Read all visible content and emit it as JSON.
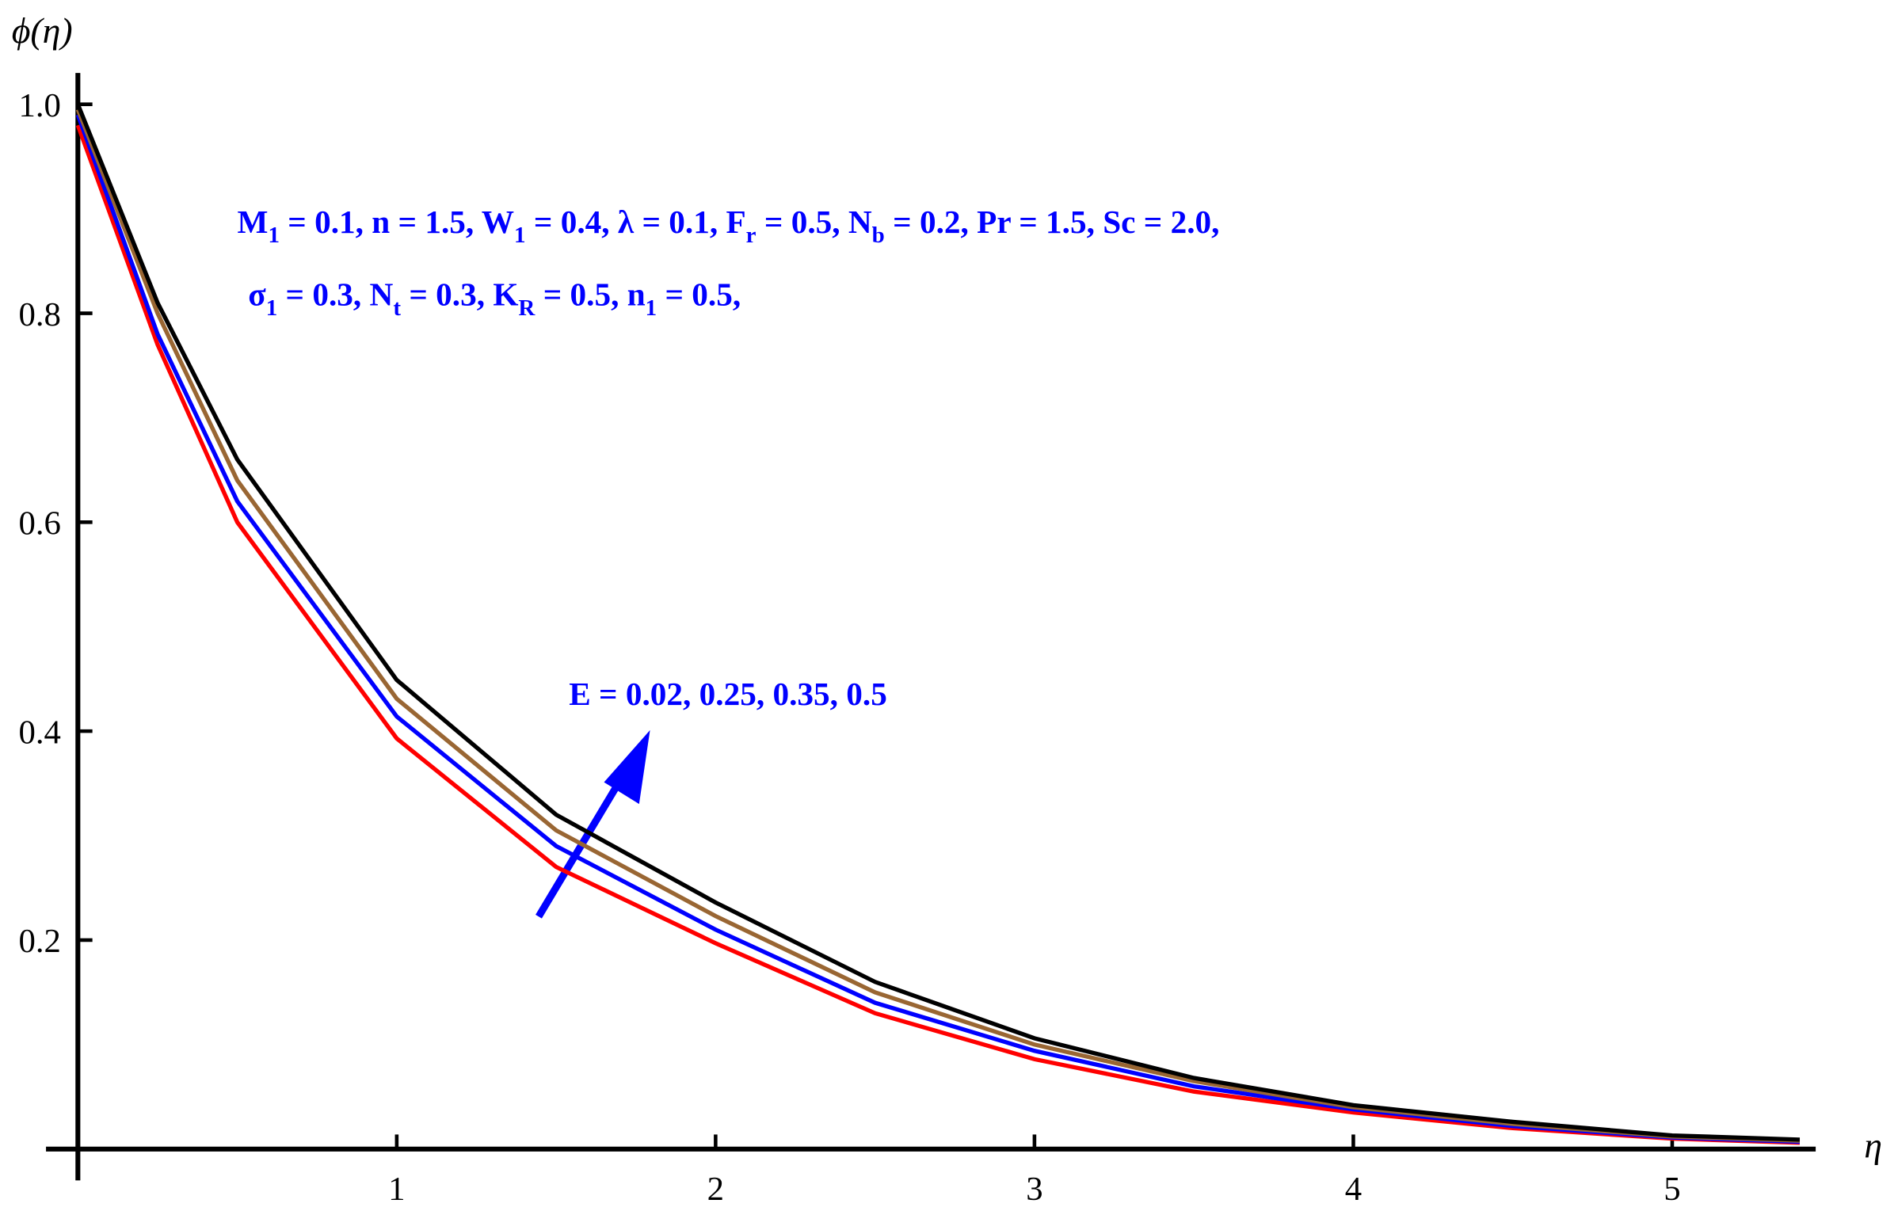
{
  "chart_data": {
    "type": "line",
    "y_label": "ϕ(η)",
    "x_label": "η",
    "annotations": [
      [
        "M",
        "1",
        " =  0.1, n = 1.5, W",
        "1",
        " =  0.4,  λ = 0.1, F",
        "r",
        " = 0.5, N",
        "b",
        " = 0.2, Pr = 1.5, Sc = 2.0,"
      ],
      [
        "σ",
        "1",
        " = 0.3,  N",
        "t",
        " = 0.3,  K",
        "R",
        " = 0.5, n",
        "1",
        " = 0.5,"
      ],
      [
        "E = 0.02, 0.25, 0.35, 0.5"
      ]
    ],
    "x": [
      0,
      0.25,
      0.5,
      1,
      1.5,
      2,
      2.5,
      3,
      3.5,
      4,
      4.5,
      5,
      5.4
    ],
    "series": [
      {
        "color": "#ff0000",
        "values": [
          0.98,
          0.77,
          0.6,
          0.393,
          0.27,
          0.197,
          0.13,
          0.086,
          0.055,
          0.035,
          0.02,
          0.01,
          0.006
        ]
      },
      {
        "color": "#0000ff",
        "values": [
          0.99,
          0.78,
          0.62,
          0.414,
          0.29,
          0.21,
          0.14,
          0.094,
          0.06,
          0.038,
          0.022,
          0.011,
          0.007
        ]
      },
      {
        "color": "#996633",
        "values": [
          0.995,
          0.8,
          0.64,
          0.431,
          0.305,
          0.223,
          0.15,
          0.1,
          0.065,
          0.04,
          0.024,
          0.012,
          0.008
        ]
      },
      {
        "color": "#000000",
        "values": [
          1.0,
          0.81,
          0.66,
          0.449,
          0.32,
          0.236,
          0.16,
          0.106,
          0.068,
          0.042,
          0.026,
          0.013,
          0.009
        ]
      }
    ],
    "xlim": [
      -0.1,
      5.45
    ],
    "ylim": [
      -0.03,
      1.03
    ],
    "xticks": [
      1,
      2,
      3,
      4,
      5
    ],
    "yticks": [
      0.2,
      0.4,
      0.6,
      0.8,
      {
        "value": 1,
        "label": "1.0"
      }
    ]
  }
}
